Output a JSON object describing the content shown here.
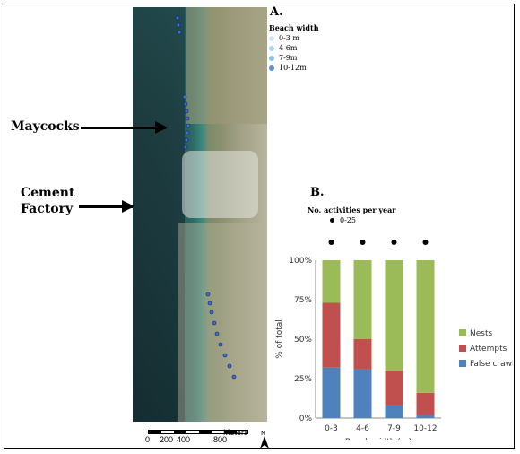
{
  "panel_a": {
    "label": "A.",
    "legend_title": "Beach width",
    "legend_items": [
      {
        "label": "0-3 m",
        "color": "#c9eaf3"
      },
      {
        "label": "4-6m",
        "color": "#a8d6ee"
      },
      {
        "label": "7-9m",
        "color": "#8cbfe6"
      },
      {
        "label": "10-12m",
        "color": "#5d8fd6"
      }
    ],
    "callout_maycocks": "Maycocks",
    "callout_cement_line1": "Cement",
    "callout_cement_line2": "Factory",
    "scale_ticks": [
      "0",
      "200",
      "400",
      "800"
    ],
    "scale_unit": "Meters",
    "north": "N"
  },
  "panel_b": {
    "label": "B.",
    "activity_legend_title": "No. activities per year",
    "activity_legend_item": "0-25"
  },
  "chart_data": {
    "type": "bar",
    "stacked": true,
    "categories": [
      "0-3",
      "4-6",
      "7-9",
      "10-12"
    ],
    "series": [
      {
        "name": "False crawls",
        "color": "#4f81bd",
        "values": [
          32,
          31,
          8,
          2
        ]
      },
      {
        "name": "Attempts",
        "color": "#c0504d",
        "values": [
          41,
          19,
          22,
          14
        ]
      },
      {
        "name": "Nests",
        "color": "#9bbb59",
        "values": [
          27,
          50,
          70,
          84
        ]
      }
    ],
    "xlabel": "Beach width (m)",
    "ylabel": "% of total",
    "yticks": [
      "0%",
      "25%",
      "50%",
      "75%",
      "100%"
    ],
    "ylim": [
      0,
      100
    ],
    "activity_markers": [
      "0-3",
      "4-6",
      "7-9",
      "10-12"
    ],
    "legend_position": "right"
  }
}
